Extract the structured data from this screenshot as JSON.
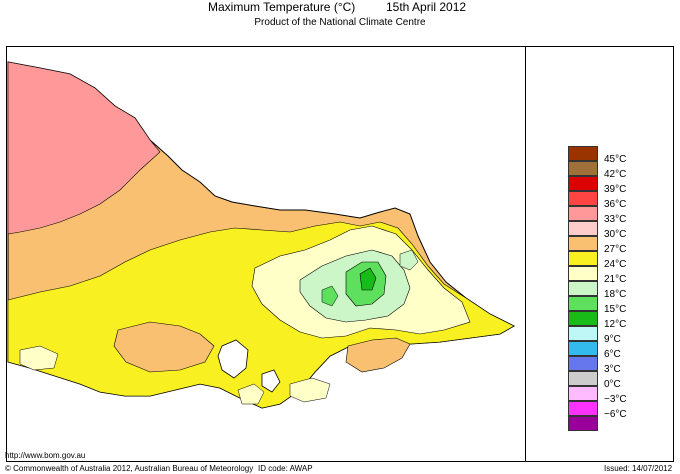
{
  "header": {
    "title": "Maximum Temperature (°C)",
    "date": "15th April 2012",
    "subtitle": "Product of the National Climate Centre"
  },
  "legend": {
    "entries": [
      {
        "label": "45°C",
        "color": "#993300"
      },
      {
        "label": "42°C",
        "color": "#a0703a"
      },
      {
        "label": "39°C",
        "color": "#dd0000"
      },
      {
        "label": "36°C",
        "color": "#ff4444"
      },
      {
        "label": "33°C",
        "color": "#ff9999"
      },
      {
        "label": "30°C",
        "color": "#ffcccc"
      },
      {
        "label": "27°C",
        "color": "#f8c070"
      },
      {
        "label": "24°C",
        "color": "#f8f020"
      },
      {
        "label": "21°C",
        "color": "#ffffc8"
      },
      {
        "label": "18°C",
        "color": "#cdf6c8"
      },
      {
        "label": "15°C",
        "color": "#5ee05e"
      },
      {
        "label": "12°C",
        "color": "#18bb18"
      },
      {
        "label": "9°C",
        "color": "#bff6f6"
      },
      {
        "label": "6°C",
        "color": "#33bbee"
      },
      {
        "label": "3°C",
        "color": "#6677ee"
      },
      {
        "label": "0°C",
        "color": "#cccccc"
      },
      {
        "label": "−3°C",
        "color": "#ffbbff"
      },
      {
        "label": "−6°C",
        "color": "#ff33ff"
      },
      {
        "label": "",
        "color": "#990099"
      }
    ]
  },
  "footer": {
    "url": "http://www.bom.gov.au",
    "copyright": "© Commonwealth of Australia 2012, Australian Bureau of Meteorology",
    "id_code": "ID code: AWAP",
    "issued": "Issued: 14/07/2012"
  }
}
